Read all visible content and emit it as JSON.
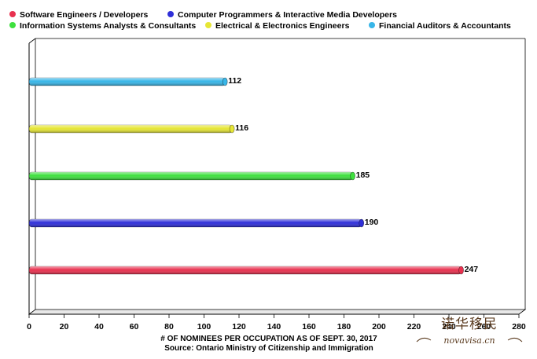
{
  "chart_data": {
    "type": "bar",
    "orientation": "horizontal",
    "categories": [
      "Software Engineers / Developers",
      "Computer Programmers & Interactive Media Developers",
      "Information Systems Analysts & Consultants",
      "Electrical & Electronics Engineers",
      "Financial Auditors & Accountants"
    ],
    "values": [
      247,
      190,
      185,
      116,
      112
    ],
    "colors": [
      "#e8314f",
      "#2f2fd8",
      "#3ee03e",
      "#e6e635",
      "#38b6e8"
    ],
    "xlim": [
      0,
      280
    ],
    "xticks": [
      "0",
      "20",
      "40",
      "60",
      "80",
      "100",
      "120",
      "140",
      "160",
      "180",
      "200",
      "220",
      "240",
      "260",
      "280"
    ],
    "xlabel": "# OF NOMINEES PER OCCUPATION AS OF SEPT. 30, 2017",
    "source": "Source: Ontario Ministry of Citizenship and Immigration",
    "legend_position": "top",
    "grid": false
  },
  "watermark": {
    "chinese": "诺华移民",
    "latin": "novavisa.cn"
  }
}
